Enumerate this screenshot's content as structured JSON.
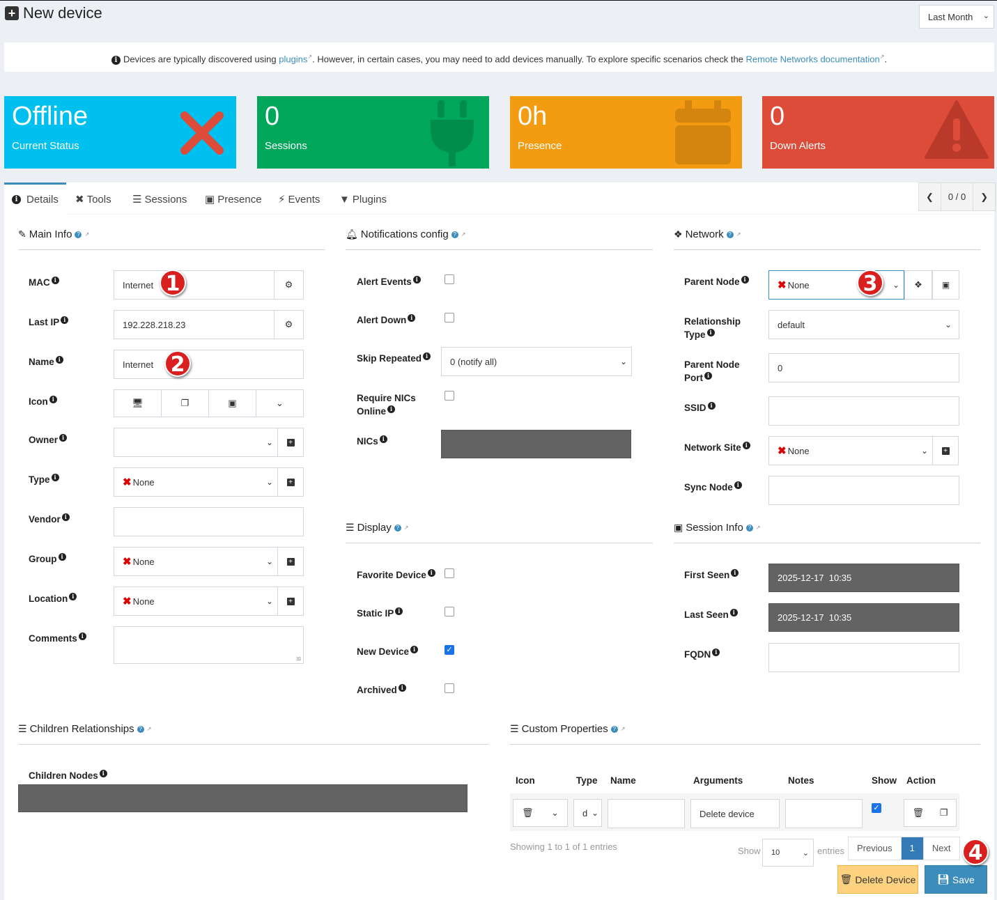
{
  "header": {
    "title": "New device",
    "range": "Last Month"
  },
  "info": {
    "text1": "Devices are typically discovered using ",
    "link1": "plugins",
    "text2": ". However, in certain cases, you may need to add devices manually. To explore specific scenarios check the ",
    "link2": "Remote Networks documentation",
    "text3": "."
  },
  "cards": [
    {
      "value": "Offline",
      "label": "Current Status",
      "color": "#00c0ef",
      "icon": "x-icon"
    },
    {
      "value": "0",
      "label": "Sessions",
      "color": "#00a65a",
      "icon": "plug-icon"
    },
    {
      "value": "0h",
      "label": "Presence",
      "color": "#f39c12",
      "icon": "calendar-icon"
    },
    {
      "value": "0",
      "label": "Down Alerts",
      "color": "#dd4b39",
      "icon": "warning-icon"
    }
  ],
  "tabs": [
    "Details",
    "Tools",
    "Sessions",
    "Presence",
    "Events",
    "Plugins"
  ],
  "pager": {
    "count": "0 / 0"
  },
  "main_info": {
    "title": "Main Info",
    "rows": [
      {
        "label": "MAC",
        "value": "Internet"
      },
      {
        "label": "Last IP",
        "value": "192.228.218.23"
      },
      {
        "label": "Name",
        "value": "Internet"
      },
      {
        "label": "Icon",
        "value": ""
      },
      {
        "label": "Owner",
        "value": ""
      },
      {
        "label": "Type",
        "value": "None"
      },
      {
        "label": "Vendor",
        "value": ""
      },
      {
        "label": "Group",
        "value": "None"
      },
      {
        "label": "Location",
        "value": "None"
      },
      {
        "label": "Comments",
        "value": ""
      }
    ]
  },
  "notifications": {
    "title": "Notifications config",
    "rows": [
      {
        "label": "Alert Events",
        "checked": false
      },
      {
        "label": "Alert Down",
        "checked": false
      },
      {
        "label": "Skip Repeated",
        "value": "0 (notify all)"
      },
      {
        "label": "Require NICs Online",
        "checked": false
      },
      {
        "label": "NICs",
        "value": ""
      }
    ]
  },
  "network": {
    "title": "Network",
    "rows": [
      {
        "label": "Parent Node",
        "value": "None"
      },
      {
        "label": "Relationship Type",
        "value": "default"
      },
      {
        "label": "Parent Node Port",
        "value": "0"
      },
      {
        "label": "SSID",
        "value": ""
      },
      {
        "label": "Network Site",
        "value": "None"
      },
      {
        "label": "Sync Node",
        "value": ""
      }
    ]
  },
  "display": {
    "title": "Display",
    "rows": [
      {
        "label": "Favorite Device",
        "checked": false
      },
      {
        "label": "Static IP",
        "checked": false
      },
      {
        "label": "New Device",
        "checked": true
      },
      {
        "label": "Archived",
        "checked": false
      }
    ]
  },
  "session_info": {
    "title": "Session Info",
    "rows": [
      {
        "label": "First Seen",
        "value": "2025-12-17  10:35"
      },
      {
        "label": "Last Seen",
        "value": "2025-12-17  10:35"
      },
      {
        "label": "FQDN",
        "value": ""
      }
    ]
  },
  "children": {
    "title": "Children Relationships",
    "label": "Children Nodes"
  },
  "custom": {
    "title": "Custom Properties",
    "columns": [
      "Icon",
      "Type",
      "Name",
      "Arguments",
      "Notes",
      "Show",
      "Action"
    ],
    "row": {
      "type": "d",
      "name": "",
      "arguments": "Delete device",
      "notes": "",
      "show": true
    },
    "showing": "Showing 1 to 1 of 1 entries",
    "show_label": "Show",
    "page_size": "10",
    "entries_label": "entries",
    "prev": "Previous",
    "page": "1",
    "next": "Next"
  },
  "actions": {
    "delete": "Delete Device",
    "save": "Save"
  },
  "badges": [
    "1",
    "2",
    "3",
    "4"
  ]
}
